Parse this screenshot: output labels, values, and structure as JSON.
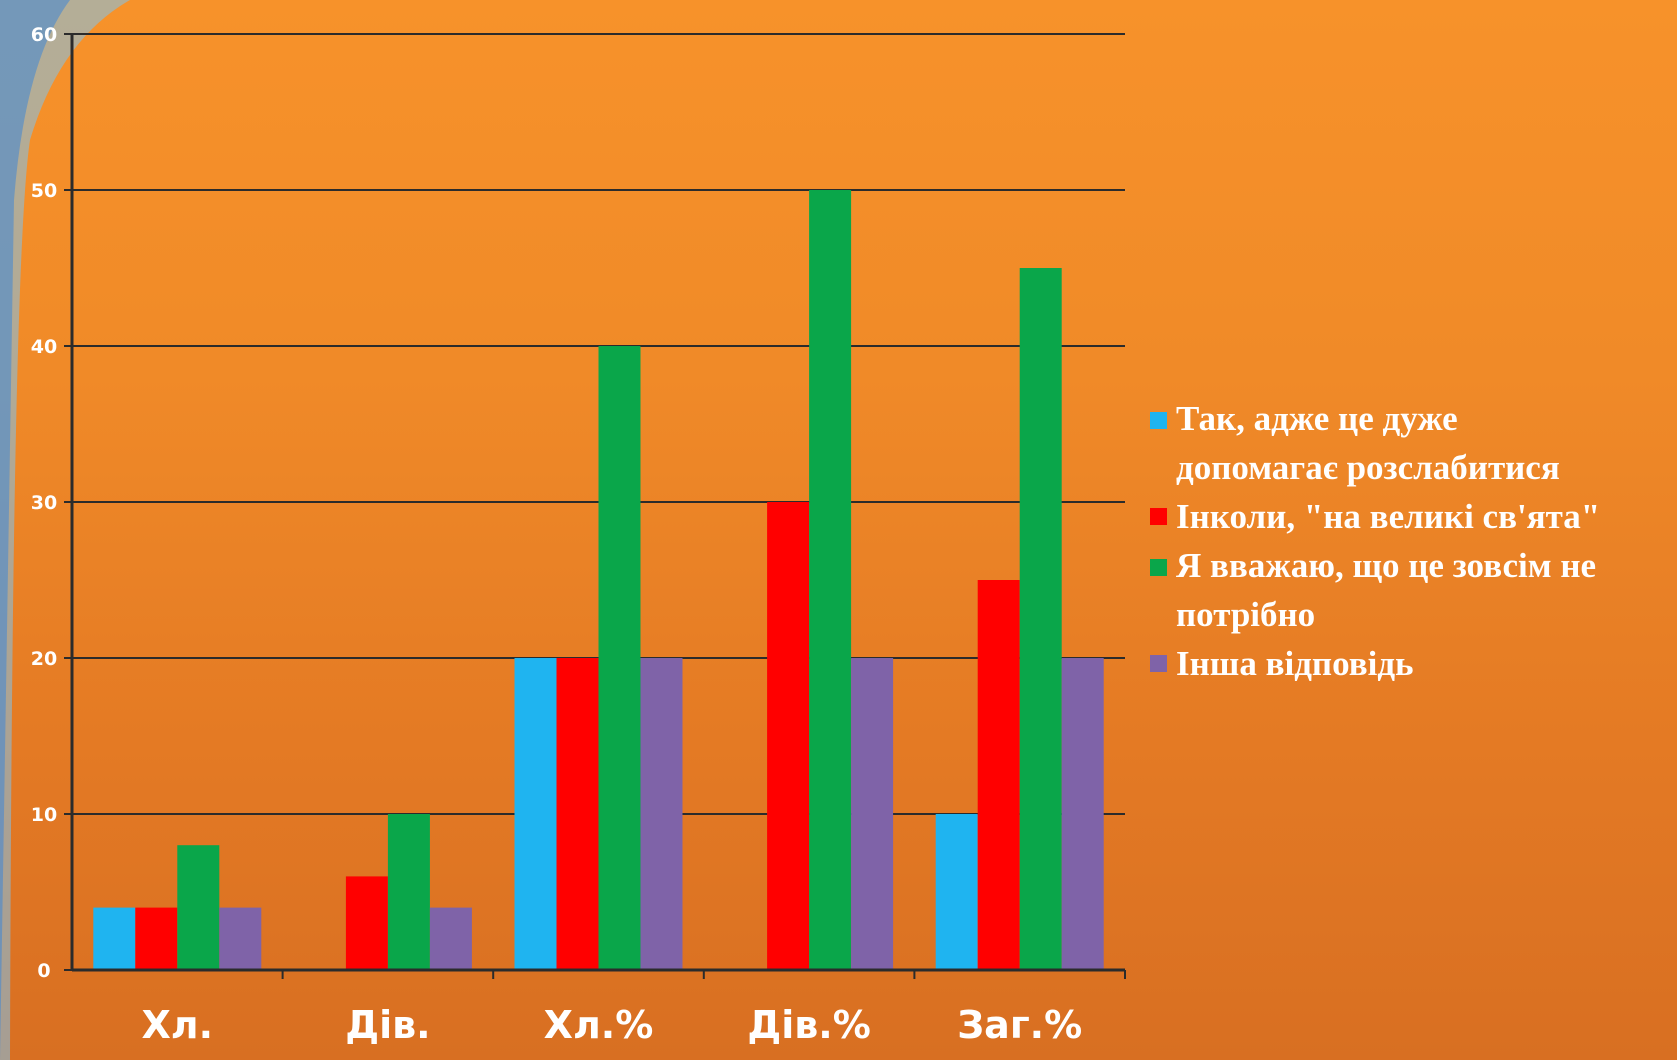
{
  "chart_data": {
    "type": "bar",
    "categories": [
      "Хл.",
      "Дів.",
      "Хл.%",
      "Дів.%",
      "Заг.%"
    ],
    "series": [
      {
        "name": "Так, адже це дуже допомагає розслабитися",
        "color": "#1fb4f0",
        "values": [
          4,
          0,
          20,
          0,
          10
        ]
      },
      {
        "name": "Інколи, \"на великі св'ята\"",
        "color": "#ff0000",
        "values": [
          4,
          6,
          20,
          30,
          25
        ]
      },
      {
        "name": "Я вважаю, що це зовсім не потрібно",
        "color": "#0aa64a",
        "values": [
          8,
          10,
          40,
          50,
          45
        ]
      },
      {
        "name": "Інша відповідь",
        "color": "#7f63a8",
        "values": [
          4,
          4,
          20,
          20,
          20
        ]
      }
    ],
    "yticks": [
      "0",
      "10",
      "20",
      "30",
      "40",
      "50",
      "60"
    ],
    "ylim": [
      0,
      60
    ],
    "grid": true,
    "legend_position": "right"
  },
  "legend": {
    "items": [
      {
        "lines": [
          "Так, адже це дуже",
          "допомагає розслабитися"
        ],
        "color": "#1fb4f0"
      },
      {
        "lines": [
          "Інколи, \"на великі св'ята\""
        ],
        "color": "#ff0000"
      },
      {
        "lines": [
          "Я вважаю, що це зовсім не",
          "потрібно"
        ],
        "color": "#0aa64a"
      },
      {
        "lines": [
          "Інша відповідь"
        ],
        "color": "#7f63a8"
      }
    ]
  }
}
